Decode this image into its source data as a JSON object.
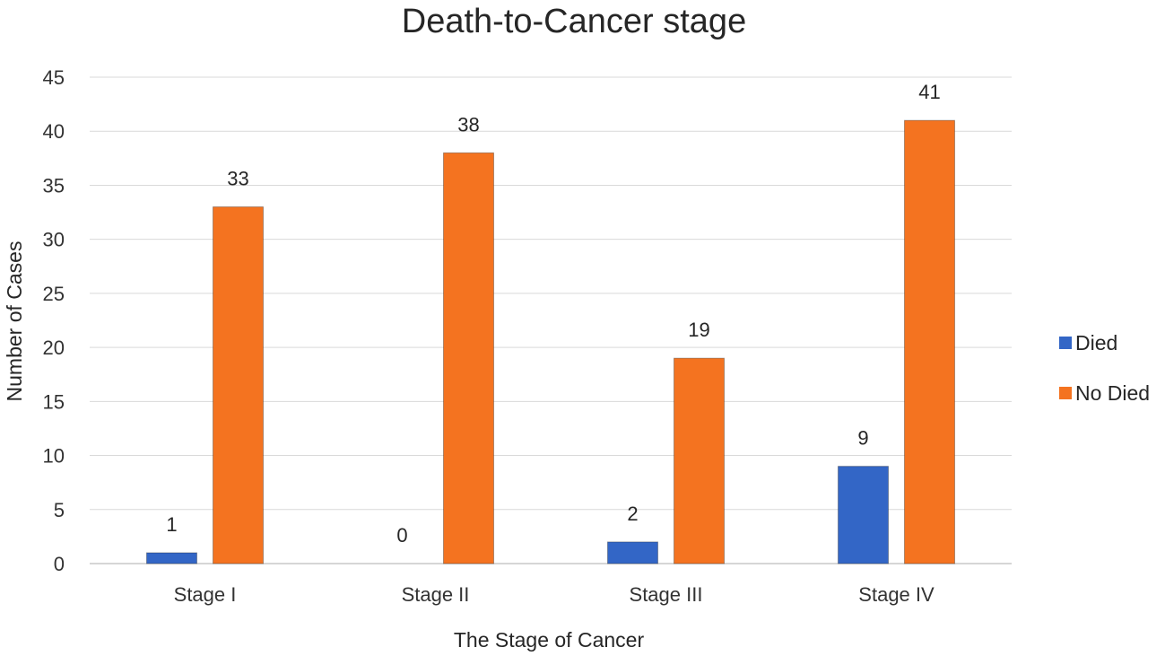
{
  "chart_data": {
    "type": "bar",
    "title": "Death-to-Cancer stage",
    "xlabel": "The Stage of Cancer",
    "ylabel": "Number of Cases",
    "categories": [
      "Stage I",
      "Stage II",
      "Stage III",
      "Stage IV"
    ],
    "series": [
      {
        "name": "Died",
        "values": [
          1,
          0,
          2,
          9
        ],
        "color": "#3366c6"
      },
      {
        "name": "No Died",
        "values": [
          33,
          38,
          19,
          41
        ],
        "color": "#f47320"
      }
    ],
    "ylim": [
      0,
      45
    ],
    "yticks": [
      0,
      5,
      10,
      15,
      20,
      25,
      30,
      35,
      40,
      45
    ],
    "grid": true,
    "legend_position": "right",
    "data_labels": true
  }
}
